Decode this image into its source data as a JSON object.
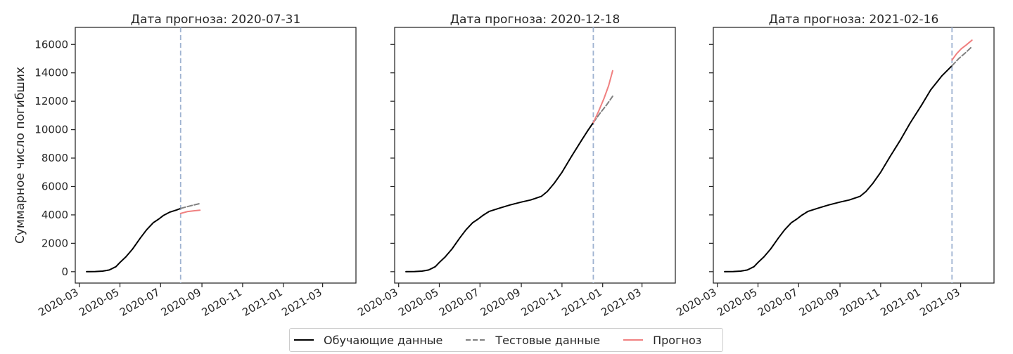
{
  "chart_data": [
    {
      "type": "line",
      "title": "Дата прогноза: 2020-07-31",
      "xlabel": "",
      "ylabel": "Суммарное число погибших",
      "forecast_date": "2020-07-31",
      "xlim": [
        "2020-02-24",
        "2021-04-20"
      ],
      "ylim": [
        -800,
        17200
      ],
      "x_ticks": [
        "2020-03",
        "2020-05",
        "2020-07",
        "2020-09",
        "2020-11",
        "2021-01",
        "2021-03"
      ],
      "y_ticks": [
        0,
        2000,
        4000,
        6000,
        8000,
        10000,
        12000,
        14000,
        16000
      ],
      "series": [
        {
          "name": "Обучающие данные",
          "x": [
            "2020-03-12",
            "2020-03-25",
            "2020-04-05",
            "2020-04-15",
            "2020-04-25",
            "2020-05-01",
            "2020-05-10",
            "2020-05-20",
            "2020-06-01",
            "2020-06-10",
            "2020-06-20",
            "2020-06-28",
            "2020-07-05",
            "2020-07-15",
            "2020-07-25",
            "2020-07-31"
          ],
          "values": [
            0,
            10,
            40,
            120,
            350,
            650,
            1050,
            1600,
            2400,
            2950,
            3450,
            3700,
            3950,
            4200,
            4350,
            4450
          ]
        },
        {
          "name": "Тестовые данные",
          "x": [
            "2020-07-31",
            "2020-08-10",
            "2020-08-20",
            "2020-08-29"
          ],
          "values": [
            4450,
            4580,
            4700,
            4800
          ]
        },
        {
          "name": "Прогноз",
          "x": [
            "2020-07-31",
            "2020-08-10",
            "2020-08-20",
            "2020-08-29"
          ],
          "values": [
            4100,
            4230,
            4290,
            4330
          ]
        }
      ]
    },
    {
      "type": "line",
      "title": "Дата прогноза: 2020-12-18",
      "xlabel": "",
      "ylabel": "",
      "forecast_date": "2020-12-18",
      "xlim": [
        "2020-02-24",
        "2021-04-20"
      ],
      "ylim": [
        -800,
        17200
      ],
      "x_ticks": [
        "2020-03",
        "2020-05",
        "2020-07",
        "2020-09",
        "2020-11",
        "2021-01",
        "2021-03"
      ],
      "y_ticks": [
        0,
        2000,
        4000,
        6000,
        8000,
        10000,
        12000,
        14000,
        16000
      ],
      "series": [
        {
          "name": "Обучающие данные",
          "x": [
            "2020-03-12",
            "2020-03-25",
            "2020-04-05",
            "2020-04-15",
            "2020-04-25",
            "2020-05-01",
            "2020-05-10",
            "2020-05-20",
            "2020-06-01",
            "2020-06-10",
            "2020-06-20",
            "2020-06-28",
            "2020-07-05",
            "2020-07-15",
            "2020-08-01",
            "2020-08-15",
            "2020-09-01",
            "2020-09-15",
            "2020-10-01",
            "2020-10-10",
            "2020-10-20",
            "2020-11-01",
            "2020-11-15",
            "2020-12-01",
            "2020-12-10",
            "2020-12-18"
          ],
          "values": [
            0,
            10,
            40,
            120,
            350,
            650,
            1050,
            1600,
            2400,
            2950,
            3450,
            3700,
            3950,
            4250,
            4500,
            4700,
            4900,
            5050,
            5300,
            5650,
            6200,
            7000,
            8100,
            9300,
            9950,
            10500
          ]
        },
        {
          "name": "Тестовые данные",
          "x": [
            "2020-12-18",
            "2020-12-28",
            "2021-01-07",
            "2021-01-16"
          ],
          "values": [
            10500,
            11150,
            11750,
            12350
          ]
        },
        {
          "name": "Прогноз",
          "x": [
            "2020-12-18",
            "2020-12-26",
            "2021-01-03",
            "2021-01-10",
            "2021-01-16"
          ],
          "values": [
            10500,
            11300,
            12200,
            13100,
            14150
          ]
        }
      ]
    },
    {
      "type": "line",
      "title": "Дата прогноза: 2021-02-16",
      "xlabel": "",
      "ylabel": "",
      "forecast_date": "2021-02-16",
      "xlim": [
        "2020-02-24",
        "2021-04-20"
      ],
      "ylim": [
        -800,
        17200
      ],
      "x_ticks": [
        "2020-03",
        "2020-05",
        "2020-07",
        "2020-09",
        "2020-11",
        "2021-01",
        "2021-03"
      ],
      "y_ticks": [
        0,
        2000,
        4000,
        6000,
        8000,
        10000,
        12000,
        14000,
        16000
      ],
      "series": [
        {
          "name": "Обучающие данные",
          "x": [
            "2020-03-12",
            "2020-03-25",
            "2020-04-05",
            "2020-04-15",
            "2020-04-25",
            "2020-05-01",
            "2020-05-10",
            "2020-05-20",
            "2020-06-01",
            "2020-06-10",
            "2020-06-20",
            "2020-06-28",
            "2020-07-05",
            "2020-07-15",
            "2020-08-01",
            "2020-08-15",
            "2020-09-01",
            "2020-09-15",
            "2020-10-01",
            "2020-10-10",
            "2020-10-20",
            "2020-11-01",
            "2020-11-15",
            "2020-12-01",
            "2020-12-15",
            "2021-01-01",
            "2021-01-15",
            "2021-02-01",
            "2021-02-16"
          ],
          "values": [
            0,
            10,
            40,
            120,
            350,
            650,
            1050,
            1600,
            2400,
            2950,
            3450,
            3700,
            3950,
            4250,
            4500,
            4700,
            4900,
            5050,
            5300,
            5650,
            6200,
            7000,
            8100,
            9300,
            10450,
            11700,
            12800,
            13800,
            14500
          ]
        },
        {
          "name": "Тестовые данные",
          "x": [
            "2021-02-16",
            "2021-02-26",
            "2021-03-08",
            "2021-03-18"
          ],
          "values": [
            14500,
            15000,
            15400,
            15850
          ]
        },
        {
          "name": "Прогноз",
          "x": [
            "2021-02-16",
            "2021-02-23",
            "2021-03-02",
            "2021-03-09",
            "2021-03-18"
          ],
          "values": [
            14900,
            15350,
            15700,
            15950,
            16300
          ]
        }
      ]
    }
  ],
  "legend": {
    "placement": "bottom-center",
    "items": [
      {
        "label": "Обучающие данные",
        "style": "solid",
        "color": "#000000"
      },
      {
        "label": "Тестовые данные",
        "style": "dashed",
        "color": "#808080"
      },
      {
        "label": "Прогноз",
        "style": "solid",
        "color": "#f08080"
      }
    ]
  },
  "colors": {
    "training": "#000000",
    "test": "#808080",
    "forecast": "#f08080",
    "forecast_line": "#9fb3d1",
    "axes": "#262626"
  }
}
